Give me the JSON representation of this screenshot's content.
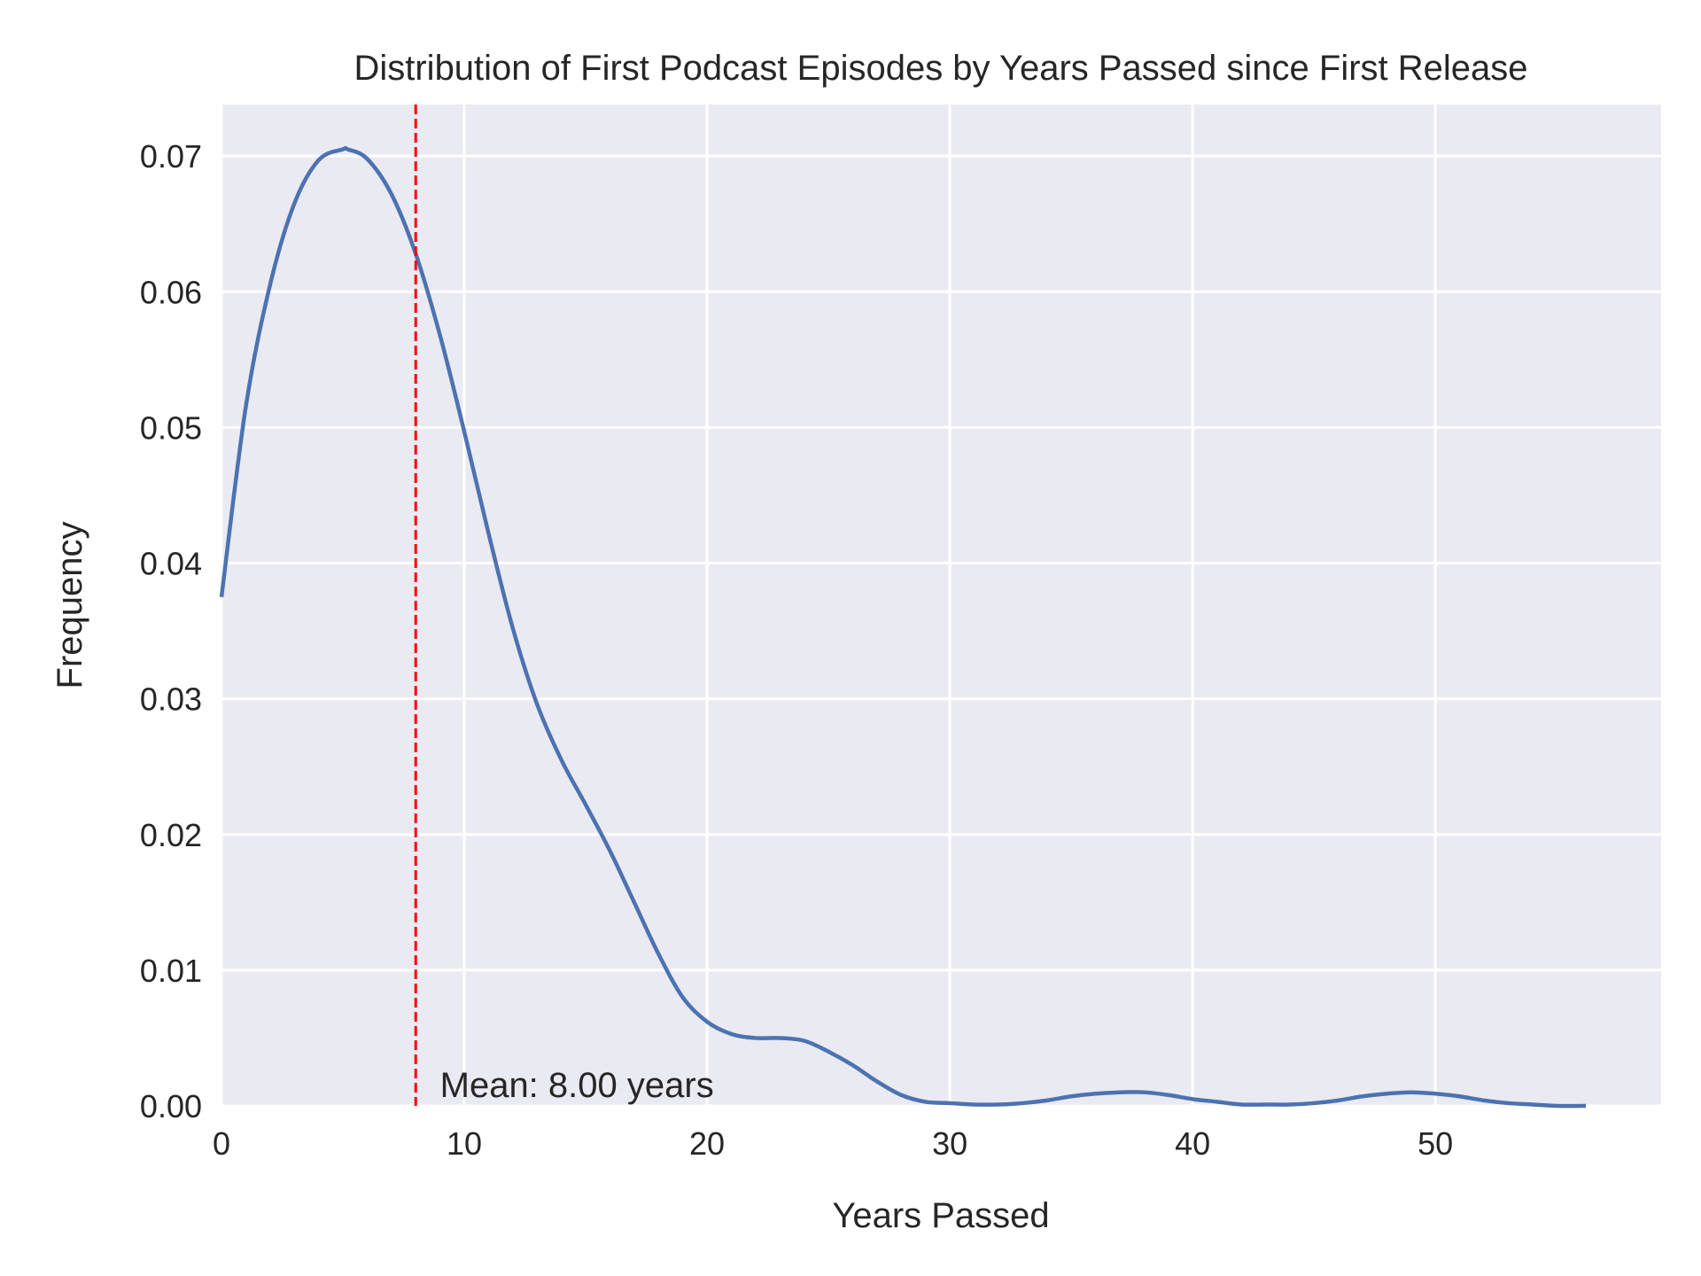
{
  "chart_data": {
    "type": "line",
    "title": "Distribution of First Podcast Episodes by Years Passed since First Release",
    "xlabel": "Years Passed",
    "ylabel": "Frequency",
    "xlim": [
      0,
      59.3
    ],
    "ylim": [
      0,
      0.0738
    ],
    "x_ticks": [
      0,
      10,
      20,
      30,
      40,
      50
    ],
    "y_ticks": [
      0.0,
      0.01,
      0.02,
      0.03,
      0.04,
      0.05,
      0.06,
      0.07
    ],
    "x_tick_labels": [
      "0",
      "10",
      "20",
      "30",
      "40",
      "50"
    ],
    "y_tick_labels": [
      "0.00",
      "0.01",
      "0.02",
      "0.03",
      "0.04",
      "0.05",
      "0.06",
      "0.07"
    ],
    "grid": true,
    "background_color": "#eaeaf2",
    "grid_color": "#ffffff",
    "series": [
      {
        "color": "#4c72b0",
        "x": [
          0,
          1,
          2,
          3,
          4,
          5,
          5.2,
          6,
          7,
          8,
          9,
          10,
          11,
          12,
          13,
          14,
          15,
          16,
          17,
          18,
          19,
          20,
          21,
          22,
          23,
          24,
          25,
          26,
          27,
          28,
          29,
          30,
          31,
          32,
          33,
          34,
          35,
          36,
          37,
          38,
          39,
          40,
          41,
          42,
          43,
          44,
          45,
          46,
          47,
          48,
          49,
          50,
          51,
          52,
          53,
          54,
          55,
          56.2
        ],
        "y": [
          0.0375,
          0.0515,
          0.0605,
          0.0665,
          0.0697,
          0.0705,
          0.0705,
          0.0698,
          0.0672,
          0.0628,
          0.0568,
          0.0497,
          0.0422,
          0.0352,
          0.0296,
          0.0255,
          0.0222,
          0.0188,
          0.015,
          0.0112,
          0.008,
          0.0062,
          0.0053,
          0.005,
          0.005,
          0.0048,
          0.004,
          0.003,
          0.0018,
          0.0008,
          0.0003,
          0.0002,
          0.0001,
          0.0001,
          0.0002,
          0.0004,
          0.0007,
          0.0009,
          0.001,
          0.001,
          0.0008,
          0.0005,
          0.0003,
          0.0001,
          0.0001,
          0.0001,
          0.0002,
          0.0004,
          0.0007,
          0.0009,
          0.001,
          0.0009,
          0.0007,
          0.0004,
          0.0002,
          0.0001,
          0.0,
          0.0
        ]
      }
    ],
    "reference_line": {
      "x": 8.0,
      "color": "#ff0000",
      "style": "dashed"
    },
    "annotation": {
      "text": "Mean: 8.00 years",
      "x": 9.0,
      "y": 0.0
    }
  }
}
